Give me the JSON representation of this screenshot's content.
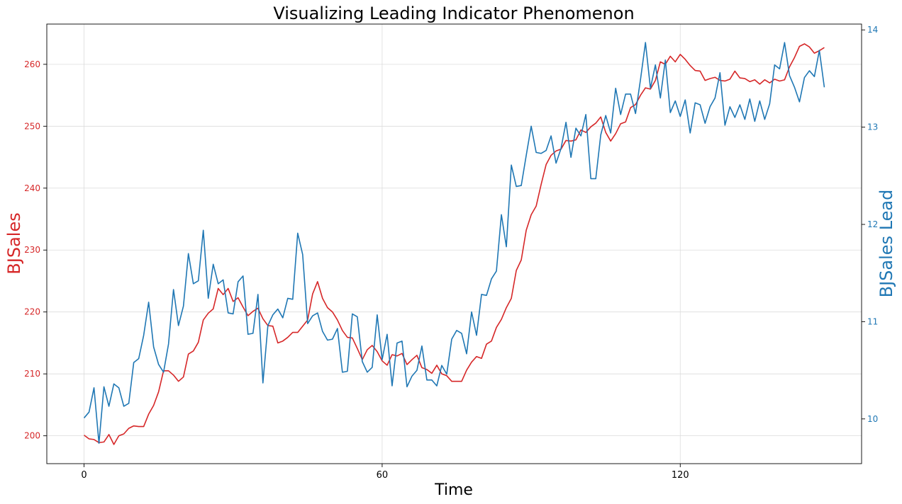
{
  "chart_data": {
    "type": "line",
    "title": "Visualizing Leading Indicator Phenomenon",
    "xlabel": "Time",
    "xlim": [
      -7.5,
      156.5
    ],
    "xticks": [
      0,
      60,
      120
    ],
    "grid": true,
    "series": [
      {
        "name": "BJSales",
        "axis": "left",
        "color": "#d62728",
        "ylabel": "BJSales",
        "ylim": [
          195.5,
          266.5
        ],
        "yticks": [
          200,
          210,
          220,
          230,
          240,
          250,
          260
        ],
        "values": [
          200.1,
          199.5,
          199.4,
          198.9,
          199.0,
          200.2,
          198.6,
          200.0,
          200.3,
          201.2,
          201.6,
          201.5,
          201.5,
          203.5,
          204.9,
          207.1,
          210.5,
          210.5,
          209.8,
          208.8,
          209.5,
          213.2,
          213.7,
          215.1,
          218.7,
          219.8,
          220.5,
          223.8,
          222.8,
          223.8,
          221.7,
          222.3,
          220.8,
          219.4,
          220.1,
          220.6,
          218.9,
          217.8,
          217.7,
          215.0,
          215.3,
          215.9,
          216.7,
          216.7,
          217.7,
          218.7,
          222.9,
          224.9,
          222.2,
          220.7,
          220.0,
          218.7,
          217.0,
          215.9,
          215.8,
          214.1,
          212.3,
          213.9,
          214.6,
          213.6,
          212.1,
          211.4,
          213.1,
          212.9,
          213.3,
          211.5,
          212.3,
          213.0,
          211.0,
          210.7,
          210.1,
          211.4,
          210.0,
          209.7,
          208.8,
          208.8,
          208.8,
          210.6,
          211.9,
          212.8,
          212.5,
          214.8,
          215.3,
          217.5,
          218.8,
          220.7,
          222.2,
          226.7,
          228.4,
          233.2,
          235.7,
          237.1,
          240.6,
          243.8,
          245.3,
          246.0,
          246.3,
          247.7,
          247.6,
          247.8,
          249.4,
          249.0,
          249.9,
          250.5,
          251.5,
          249.0,
          247.6,
          248.8,
          250.4,
          250.7,
          253.0,
          253.5,
          255.0,
          256.2,
          256.0,
          257.4,
          260.4,
          260.0,
          261.3,
          260.4,
          261.6,
          260.8,
          259.8,
          259.0,
          258.9,
          257.4,
          257.7,
          257.9,
          257.4,
          257.3,
          257.6,
          258.9,
          257.8,
          257.7,
          257.2,
          257.5,
          256.8,
          257.5,
          257.0,
          257.6,
          257.3,
          257.5,
          259.6,
          261.1,
          262.9,
          263.3,
          262.8,
          261.8,
          262.2,
          262.7
        ]
      },
      {
        "name": "BJSales Lead",
        "axis": "right",
        "color": "#1f77b4",
        "ylabel": "BJSales Lead",
        "ylim": [
          9.54,
          14.06
        ],
        "yticks": [
          10,
          11,
          12,
          13,
          14
        ],
        "values": [
          10.01,
          10.07,
          10.32,
          9.75,
          10.33,
          10.13,
          10.36,
          10.32,
          10.13,
          10.16,
          10.58,
          10.62,
          10.86,
          11.2,
          10.74,
          10.56,
          10.48,
          10.77,
          11.33,
          10.96,
          11.16,
          11.7,
          11.39,
          11.42,
          11.94,
          11.24,
          11.59,
          11.39,
          11.43,
          11.09,
          11.08,
          11.41,
          11.47,
          10.87,
          10.88,
          11.28,
          10.37,
          10.96,
          11.07,
          11.13,
          11.04,
          11.24,
          11.23,
          11.91,
          11.69,
          10.98,
          11.06,
          11.09,
          10.9,
          10.81,
          10.82,
          10.93,
          10.48,
          10.49,
          11.08,
          11.05,
          10.59,
          10.48,
          10.53,
          11.07,
          10.61,
          10.87,
          10.34,
          10.78,
          10.8,
          10.33,
          10.44,
          10.5,
          10.75,
          10.4,
          10.4,
          10.34,
          10.55,
          10.46,
          10.82,
          10.91,
          10.88,
          10.67,
          11.1,
          10.86,
          11.28,
          11.27,
          11.44,
          11.52,
          12.1,
          11.77,
          12.61,
          12.39,
          12.4,
          12.71,
          13.01,
          12.74,
          12.73,
          12.76,
          12.91,
          12.63,
          12.78,
          13.05,
          12.69,
          12.99,
          12.91,
          13.13,
          12.47,
          12.47,
          12.92,
          13.12,
          12.94,
          13.4,
          13.13,
          13.34,
          13.34,
          13.14,
          13.49,
          13.87,
          13.4,
          13.64,
          13.3,
          13.69,
          13.15,
          13.27,
          13.11,
          13.28,
          12.94,
          13.25,
          13.23,
          13.04,
          13.21,
          13.3,
          13.56,
          13.02,
          13.21,
          13.1,
          13.23,
          13.08,
          13.29,
          13.06,
          13.27,
          13.08,
          13.24,
          13.64,
          13.6,
          13.87,
          13.53,
          13.41,
          13.26,
          13.51,
          13.58,
          13.52,
          13.79,
          13.41
        ]
      }
    ]
  }
}
